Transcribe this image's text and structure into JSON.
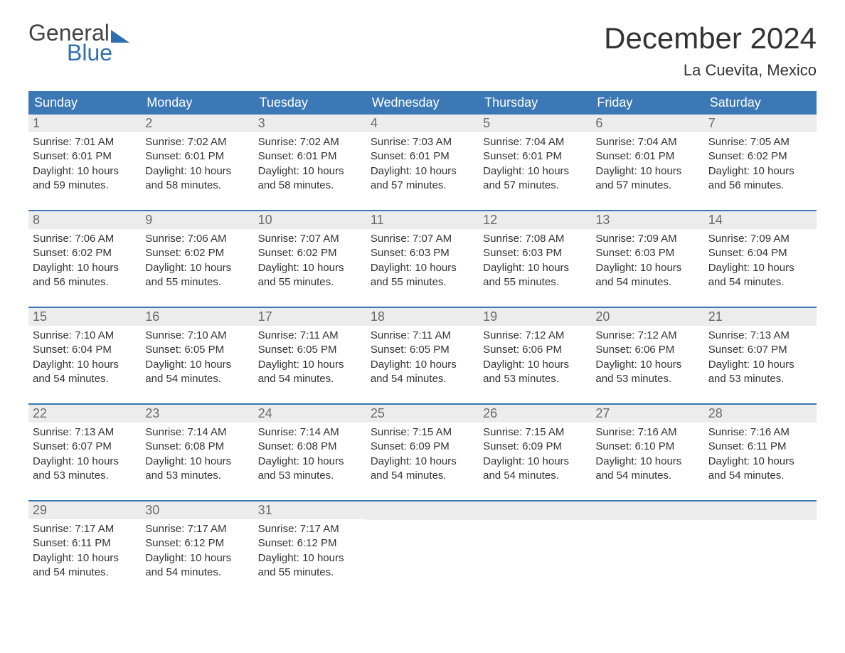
{
  "brand": {
    "line1": "General",
    "line2": "Blue"
  },
  "title": "December 2024",
  "location": "La Cuevita, Mexico",
  "colors": {
    "header_bg": "#3b78b5",
    "header_text": "#ffffff",
    "daynum_bg": "#ececec",
    "daynum_text": "#6b6b6b",
    "body_text": "#333333",
    "week_border": "#3b78b5",
    "brand_blue": "#2f6fb0",
    "background": "#ffffff"
  },
  "typography": {
    "title_fontsize": 42,
    "location_fontsize": 22,
    "dayheader_fontsize": 18,
    "daynum_fontsize": 18,
    "body_fontsize": 15
  },
  "day_headers": [
    "Sunday",
    "Monday",
    "Tuesday",
    "Wednesday",
    "Thursday",
    "Friday",
    "Saturday"
  ],
  "weeks": [
    [
      {
        "num": "1",
        "sunrise": "Sunrise: 7:01 AM",
        "sunset": "Sunset: 6:01 PM",
        "dl1": "Daylight: 10 hours",
        "dl2": "and 59 minutes."
      },
      {
        "num": "2",
        "sunrise": "Sunrise: 7:02 AM",
        "sunset": "Sunset: 6:01 PM",
        "dl1": "Daylight: 10 hours",
        "dl2": "and 58 minutes."
      },
      {
        "num": "3",
        "sunrise": "Sunrise: 7:02 AM",
        "sunset": "Sunset: 6:01 PM",
        "dl1": "Daylight: 10 hours",
        "dl2": "and 58 minutes."
      },
      {
        "num": "4",
        "sunrise": "Sunrise: 7:03 AM",
        "sunset": "Sunset: 6:01 PM",
        "dl1": "Daylight: 10 hours",
        "dl2": "and 57 minutes."
      },
      {
        "num": "5",
        "sunrise": "Sunrise: 7:04 AM",
        "sunset": "Sunset: 6:01 PM",
        "dl1": "Daylight: 10 hours",
        "dl2": "and 57 minutes."
      },
      {
        "num": "6",
        "sunrise": "Sunrise: 7:04 AM",
        "sunset": "Sunset: 6:01 PM",
        "dl1": "Daylight: 10 hours",
        "dl2": "and 57 minutes."
      },
      {
        "num": "7",
        "sunrise": "Sunrise: 7:05 AM",
        "sunset": "Sunset: 6:02 PM",
        "dl1": "Daylight: 10 hours",
        "dl2": "and 56 minutes."
      }
    ],
    [
      {
        "num": "8",
        "sunrise": "Sunrise: 7:06 AM",
        "sunset": "Sunset: 6:02 PM",
        "dl1": "Daylight: 10 hours",
        "dl2": "and 56 minutes."
      },
      {
        "num": "9",
        "sunrise": "Sunrise: 7:06 AM",
        "sunset": "Sunset: 6:02 PM",
        "dl1": "Daylight: 10 hours",
        "dl2": "and 55 minutes."
      },
      {
        "num": "10",
        "sunrise": "Sunrise: 7:07 AM",
        "sunset": "Sunset: 6:02 PM",
        "dl1": "Daylight: 10 hours",
        "dl2": "and 55 minutes."
      },
      {
        "num": "11",
        "sunrise": "Sunrise: 7:07 AM",
        "sunset": "Sunset: 6:03 PM",
        "dl1": "Daylight: 10 hours",
        "dl2": "and 55 minutes."
      },
      {
        "num": "12",
        "sunrise": "Sunrise: 7:08 AM",
        "sunset": "Sunset: 6:03 PM",
        "dl1": "Daylight: 10 hours",
        "dl2": "and 55 minutes."
      },
      {
        "num": "13",
        "sunrise": "Sunrise: 7:09 AM",
        "sunset": "Sunset: 6:03 PM",
        "dl1": "Daylight: 10 hours",
        "dl2": "and 54 minutes."
      },
      {
        "num": "14",
        "sunrise": "Sunrise: 7:09 AM",
        "sunset": "Sunset: 6:04 PM",
        "dl1": "Daylight: 10 hours",
        "dl2": "and 54 minutes."
      }
    ],
    [
      {
        "num": "15",
        "sunrise": "Sunrise: 7:10 AM",
        "sunset": "Sunset: 6:04 PM",
        "dl1": "Daylight: 10 hours",
        "dl2": "and 54 minutes."
      },
      {
        "num": "16",
        "sunrise": "Sunrise: 7:10 AM",
        "sunset": "Sunset: 6:05 PM",
        "dl1": "Daylight: 10 hours",
        "dl2": "and 54 minutes."
      },
      {
        "num": "17",
        "sunrise": "Sunrise: 7:11 AM",
        "sunset": "Sunset: 6:05 PM",
        "dl1": "Daylight: 10 hours",
        "dl2": "and 54 minutes."
      },
      {
        "num": "18",
        "sunrise": "Sunrise: 7:11 AM",
        "sunset": "Sunset: 6:05 PM",
        "dl1": "Daylight: 10 hours",
        "dl2": "and 54 minutes."
      },
      {
        "num": "19",
        "sunrise": "Sunrise: 7:12 AM",
        "sunset": "Sunset: 6:06 PM",
        "dl1": "Daylight: 10 hours",
        "dl2": "and 53 minutes."
      },
      {
        "num": "20",
        "sunrise": "Sunrise: 7:12 AM",
        "sunset": "Sunset: 6:06 PM",
        "dl1": "Daylight: 10 hours",
        "dl2": "and 53 minutes."
      },
      {
        "num": "21",
        "sunrise": "Sunrise: 7:13 AM",
        "sunset": "Sunset: 6:07 PM",
        "dl1": "Daylight: 10 hours",
        "dl2": "and 53 minutes."
      }
    ],
    [
      {
        "num": "22",
        "sunrise": "Sunrise: 7:13 AM",
        "sunset": "Sunset: 6:07 PM",
        "dl1": "Daylight: 10 hours",
        "dl2": "and 53 minutes."
      },
      {
        "num": "23",
        "sunrise": "Sunrise: 7:14 AM",
        "sunset": "Sunset: 6:08 PM",
        "dl1": "Daylight: 10 hours",
        "dl2": "and 53 minutes."
      },
      {
        "num": "24",
        "sunrise": "Sunrise: 7:14 AM",
        "sunset": "Sunset: 6:08 PM",
        "dl1": "Daylight: 10 hours",
        "dl2": "and 53 minutes."
      },
      {
        "num": "25",
        "sunrise": "Sunrise: 7:15 AM",
        "sunset": "Sunset: 6:09 PM",
        "dl1": "Daylight: 10 hours",
        "dl2": "and 54 minutes."
      },
      {
        "num": "26",
        "sunrise": "Sunrise: 7:15 AM",
        "sunset": "Sunset: 6:09 PM",
        "dl1": "Daylight: 10 hours",
        "dl2": "and 54 minutes."
      },
      {
        "num": "27",
        "sunrise": "Sunrise: 7:16 AM",
        "sunset": "Sunset: 6:10 PM",
        "dl1": "Daylight: 10 hours",
        "dl2": "and 54 minutes."
      },
      {
        "num": "28",
        "sunrise": "Sunrise: 7:16 AM",
        "sunset": "Sunset: 6:11 PM",
        "dl1": "Daylight: 10 hours",
        "dl2": "and 54 minutes."
      }
    ],
    [
      {
        "num": "29",
        "sunrise": "Sunrise: 7:17 AM",
        "sunset": "Sunset: 6:11 PM",
        "dl1": "Daylight: 10 hours",
        "dl2": "and 54 minutes."
      },
      {
        "num": "30",
        "sunrise": "Sunrise: 7:17 AM",
        "sunset": "Sunset: 6:12 PM",
        "dl1": "Daylight: 10 hours",
        "dl2": "and 54 minutes."
      },
      {
        "num": "31",
        "sunrise": "Sunrise: 7:17 AM",
        "sunset": "Sunset: 6:12 PM",
        "dl1": "Daylight: 10 hours",
        "dl2": "and 55 minutes."
      },
      {
        "empty": true
      },
      {
        "empty": true
      },
      {
        "empty": true
      },
      {
        "empty": true
      }
    ]
  ]
}
